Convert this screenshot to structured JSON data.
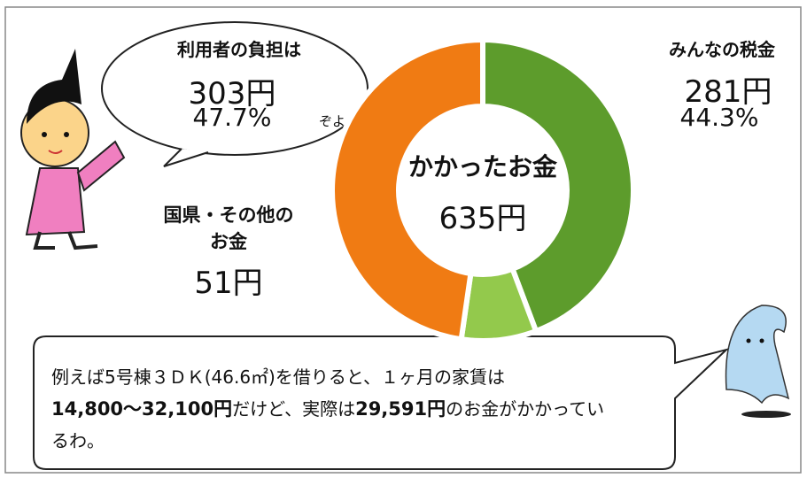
{
  "chart_data": {
    "type": "donut",
    "categories": [
      "みんなの税金",
      "国県・その他のお金",
      "利用者の負担は"
    ],
    "values": [
      281,
      51,
      303
    ],
    "value_labels": [
      "281円",
      "51円",
      "303円"
    ],
    "percent_labels": [
      "44.3%",
      null,
      "47.7%"
    ],
    "colors": [
      "#5d9c2c",
      "#93c94c",
      "#f07b13"
    ],
    "center_label": "かかったお金",
    "total_label": "635円",
    "annotation": "ぞよ"
  },
  "note": {
    "parts": [
      "例えば5号棟３ＤＫ(46.6㎡)を借りると、１ヶ月の家賃は",
      "14,800～32,100円",
      "だけど、実際は",
      "29,591円",
      "のお金がかかっているわ。"
    ]
  }
}
